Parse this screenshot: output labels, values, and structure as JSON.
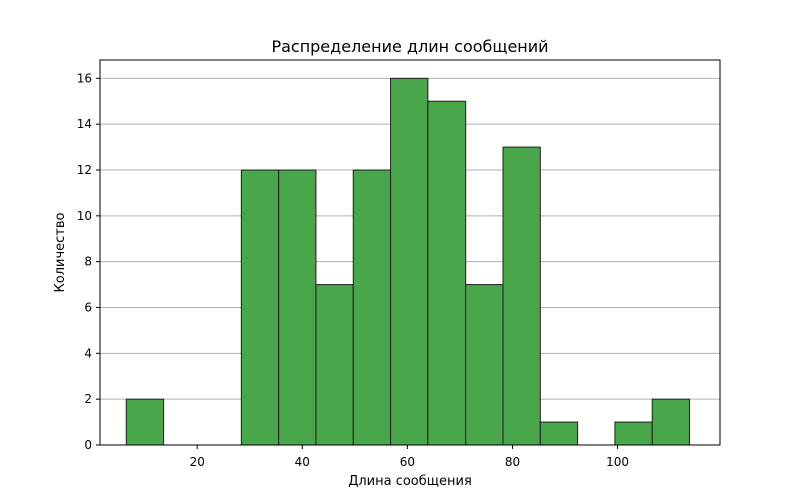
{
  "chart_data": {
    "type": "bar",
    "title": "Распределение длин сообщений",
    "xlabel": "Длина сообщения",
    "ylabel": "Количество",
    "xlim": [
      1.5,
      119.5
    ],
    "ylim": [
      0,
      16.8
    ],
    "xticks": [
      20,
      40,
      60,
      80,
      100
    ],
    "yticks": [
      0,
      2,
      4,
      6,
      8,
      10,
      12,
      14,
      16
    ],
    "grid": "y",
    "bar_color": "#4aa64a",
    "bins": [
      {
        "start": 6.5,
        "end": 13.6,
        "value": 2
      },
      {
        "start": 13.6,
        "end": 20.7,
        "value": 0
      },
      {
        "start": 20.7,
        "end": 28.4,
        "value": 0
      },
      {
        "start": 28.4,
        "end": 35.5,
        "value": 12
      },
      {
        "start": 35.5,
        "end": 42.6,
        "value": 12
      },
      {
        "start": 42.6,
        "end": 49.7,
        "value": 7
      },
      {
        "start": 49.7,
        "end": 56.8,
        "value": 12
      },
      {
        "start": 56.8,
        "end": 63.9,
        "value": 16
      },
      {
        "start": 63.9,
        "end": 71.1,
        "value": 15
      },
      {
        "start": 71.1,
        "end": 78.2,
        "value": 7
      },
      {
        "start": 78.2,
        "end": 85.3,
        "value": 13
      },
      {
        "start": 85.3,
        "end": 92.4,
        "value": 1
      },
      {
        "start": 92.4,
        "end": 99.5,
        "value": 0
      },
      {
        "start": 99.5,
        "end": 106.6,
        "value": 1
      },
      {
        "start": 106.6,
        "end": 113.7,
        "value": 2
      }
    ]
  }
}
